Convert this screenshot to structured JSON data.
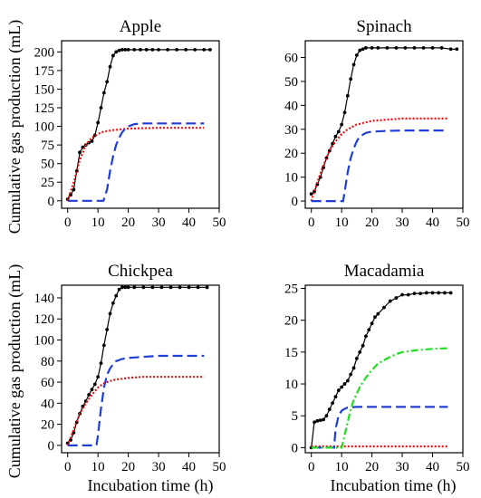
{
  "figure": {
    "ylabel": "Cumulative gas production (mL)",
    "xlabel": "Incubation time (h)"
  },
  "chart_data": [
    {
      "type": "line",
      "title": "Apple",
      "xlabel": "Incubation time (h)",
      "ylabel": "Cumulative gas production (mL)",
      "xlim": [
        -2,
        50
      ],
      "ylim": [
        -10,
        215
      ],
      "xticks": [
        0,
        10,
        20,
        30,
        40,
        50
      ],
      "yticks": [
        0,
        25,
        50,
        75,
        100,
        125,
        150,
        175,
        200
      ],
      "series": [
        {
          "color": "#000000",
          "style": "points-line",
          "x": [
            0,
            1,
            2,
            3,
            4,
            5,
            6,
            7,
            8,
            9,
            10,
            11,
            12,
            13,
            14,
            15,
            16,
            17,
            18,
            19,
            20,
            22,
            24,
            26,
            28,
            30,
            33,
            36,
            39,
            42,
            45,
            47
          ],
          "y": [
            2,
            8,
            15,
            40,
            65,
            72,
            75,
            78,
            80,
            88,
            105,
            125,
            145,
            160,
            180,
            195,
            200,
            202,
            203,
            203,
            203,
            203,
            203,
            203,
            203,
            203,
            203,
            203,
            203,
            203,
            203,
            203
          ]
        },
        {
          "color": "#ee1111",
          "style": "dotted",
          "x": [
            0,
            2,
            4,
            6,
            8,
            10,
            12,
            15,
            20,
            25,
            30,
            35,
            40,
            45
          ],
          "y": [
            0,
            25,
            55,
            75,
            85,
            90,
            93,
            95,
            97,
            97.5,
            98,
            98,
            98,
            98
          ]
        },
        {
          "color": "#1f3fd8",
          "style": "dashed",
          "x": [
            0,
            5,
            10,
            11.8,
            13,
            14,
            15,
            16,
            17,
            18,
            19,
            20,
            22,
            25,
            30,
            35,
            40,
            45
          ],
          "y": [
            0,
            0,
            0,
            0,
            15,
            40,
            60,
            75,
            85,
            92,
            97,
            100,
            103,
            104,
            104,
            104,
            104,
            104
          ]
        }
      ]
    },
    {
      "type": "line",
      "title": "Spinach",
      "xlabel": "Incubation time (h)",
      "ylabel": "Cumulative gas production (mL)",
      "xlim": [
        -2,
        50
      ],
      "ylim": [
        -3,
        67
      ],
      "xticks": [
        0,
        10,
        20,
        30,
        40,
        50
      ],
      "yticks": [
        0,
        10,
        20,
        30,
        40,
        50,
        60
      ],
      "series": [
        {
          "color": "#000000",
          "style": "points-line",
          "x": [
            0,
            1,
            2,
            3,
            4,
            5,
            6,
            7,
            8,
            9,
            10,
            11,
            12,
            13,
            14,
            15,
            16,
            17,
            18,
            20,
            22,
            25,
            28,
            31,
            34,
            37,
            40,
            43,
            46,
            48
          ],
          "y": [
            3,
            4,
            7,
            10,
            14,
            18,
            21,
            24,
            27,
            29,
            32,
            37,
            44,
            51,
            57,
            61,
            63,
            63.5,
            64,
            64,
            64,
            64,
            64,
            64,
            64,
            64,
            64,
            64,
            63.5,
            63.5
          ]
        },
        {
          "color": "#ee1111",
          "style": "dotted",
          "x": [
            0,
            2,
            4,
            6,
            8,
            10,
            12,
            15,
            20,
            25,
            30,
            35,
            40,
            45
          ],
          "y": [
            0,
            8,
            15,
            21,
            25,
            28,
            30,
            32,
            33.5,
            34,
            34.5,
            34.5,
            34.5,
            34.5
          ]
        },
        {
          "color": "#1f3fd8",
          "style": "dashed",
          "x": [
            0,
            5,
            10,
            10.5,
            11,
            12,
            13,
            14,
            15,
            16,
            18,
            20,
            25,
            30,
            35,
            40,
            45
          ],
          "y": [
            0,
            0,
            0,
            0,
            4,
            12,
            18,
            22,
            25,
            27,
            28.5,
            29,
            29.3,
            29.5,
            29.5,
            29.5,
            29.5
          ]
        }
      ]
    },
    {
      "type": "line",
      "title": "Chickpea",
      "xlabel": "Incubation time (h)",
      "ylabel": "Cumulative gas production (mL)",
      "xlim": [
        -2,
        50
      ],
      "ylim": [
        -7,
        152
      ],
      "xticks": [
        0,
        10,
        20,
        30,
        40,
        50
      ],
      "yticks": [
        0,
        20,
        40,
        60,
        80,
        100,
        120,
        140
      ],
      "series": [
        {
          "color": "#000000",
          "style": "points-line",
          "x": [
            0,
            1,
            2,
            3,
            4,
            5,
            6,
            7,
            8,
            9,
            10,
            11,
            12,
            13,
            14,
            15,
            16,
            17,
            18,
            19,
            20,
            22,
            25,
            28,
            31,
            34,
            37,
            40,
            43,
            46
          ],
          "y": [
            2,
            5,
            12,
            22,
            30,
            37,
            42,
            48,
            53,
            58,
            65,
            78,
            95,
            110,
            125,
            135,
            142,
            148,
            150,
            150,
            150,
            150,
            150,
            150,
            150,
            150,
            150,
            150,
            150,
            150
          ]
        },
        {
          "color": "#ee1111",
          "style": "dotted",
          "x": [
            0,
            2,
            4,
            6,
            8,
            10,
            12,
            15,
            20,
            25,
            30,
            35,
            40,
            45
          ],
          "y": [
            0,
            15,
            30,
            40,
            48,
            55,
            59,
            62,
            64,
            65,
            65,
            65,
            65,
            65
          ]
        },
        {
          "color": "#1f3fd8",
          "style": "dashed",
          "x": [
            0,
            5,
            9,
            9.5,
            10,
            11,
            12,
            13,
            14,
            15,
            16,
            18,
            20,
            25,
            30,
            35,
            40,
            45
          ],
          "y": [
            0,
            0,
            0,
            0,
            10,
            35,
            55,
            67,
            73,
            77,
            80,
            82,
            83,
            84,
            85,
            85,
            85,
            85
          ]
        }
      ]
    },
    {
      "type": "line",
      "title": "Macadamia",
      "xlabel": "Incubation time (h)",
      "ylabel": "Cumulative gas production (mL)",
      "xlim": [
        -2,
        50
      ],
      "ylim": [
        -0.8,
        25.5
      ],
      "xticks": [
        0,
        10,
        20,
        30,
        40,
        50
      ],
      "yticks": [
        0,
        5,
        10,
        15,
        20,
        25
      ],
      "series": [
        {
          "color": "#000000",
          "style": "points-line",
          "x": [
            0,
            1,
            2,
            3,
            4,
            5,
            6,
            7,
            8,
            9,
            10,
            11,
            12,
            13,
            14,
            15,
            16,
            17,
            18,
            19,
            20,
            21,
            22,
            24,
            26,
            28,
            30,
            32,
            34,
            36,
            38,
            40,
            42,
            44,
            46
          ],
          "y": [
            0,
            4,
            4.2,
            4.3,
            4.4,
            5,
            6,
            7,
            8,
            9,
            9.5,
            10,
            10.5,
            11.5,
            12.5,
            14,
            15,
            16,
            17.5,
            18.5,
            19.5,
            20.5,
            21,
            22,
            23,
            23.5,
            24,
            24,
            24.2,
            24.2,
            24.3,
            24.3,
            24.3,
            24.3,
            24.3
          ]
        },
        {
          "color": "#ee1111",
          "style": "dotted",
          "x": [
            0,
            5,
            10,
            15,
            20,
            25,
            30,
            35,
            40,
            45
          ],
          "y": [
            0.2,
            0.2,
            0.2,
            0.2,
            0.2,
            0.2,
            0.2,
            0.2,
            0.2,
            0.2
          ]
        },
        {
          "color": "#1f3fd8",
          "style": "dashed",
          "x": [
            0,
            5,
            7,
            7.5,
            8,
            9,
            10,
            11,
            12,
            15,
            20,
            25,
            30,
            35,
            40,
            45
          ],
          "y": [
            0,
            0,
            0,
            0,
            3,
            5,
            5.8,
            6.1,
            6.3,
            6.4,
            6.4,
            6.4,
            6.4,
            6.4,
            6.4,
            6.4
          ]
        },
        {
          "color": "#22dd22",
          "style": "dashdot",
          "x": [
            0,
            5,
            10,
            11,
            12,
            13,
            14,
            15,
            16,
            18,
            20,
            22,
            25,
            28,
            30,
            35,
            40,
            45
          ],
          "y": [
            0,
            0,
            0,
            2,
            4,
            6,
            7.5,
            8.5,
            9.5,
            11,
            12.2,
            13.2,
            14,
            14.7,
            15,
            15.3,
            15.5,
            15.6
          ]
        }
      ]
    }
  ]
}
